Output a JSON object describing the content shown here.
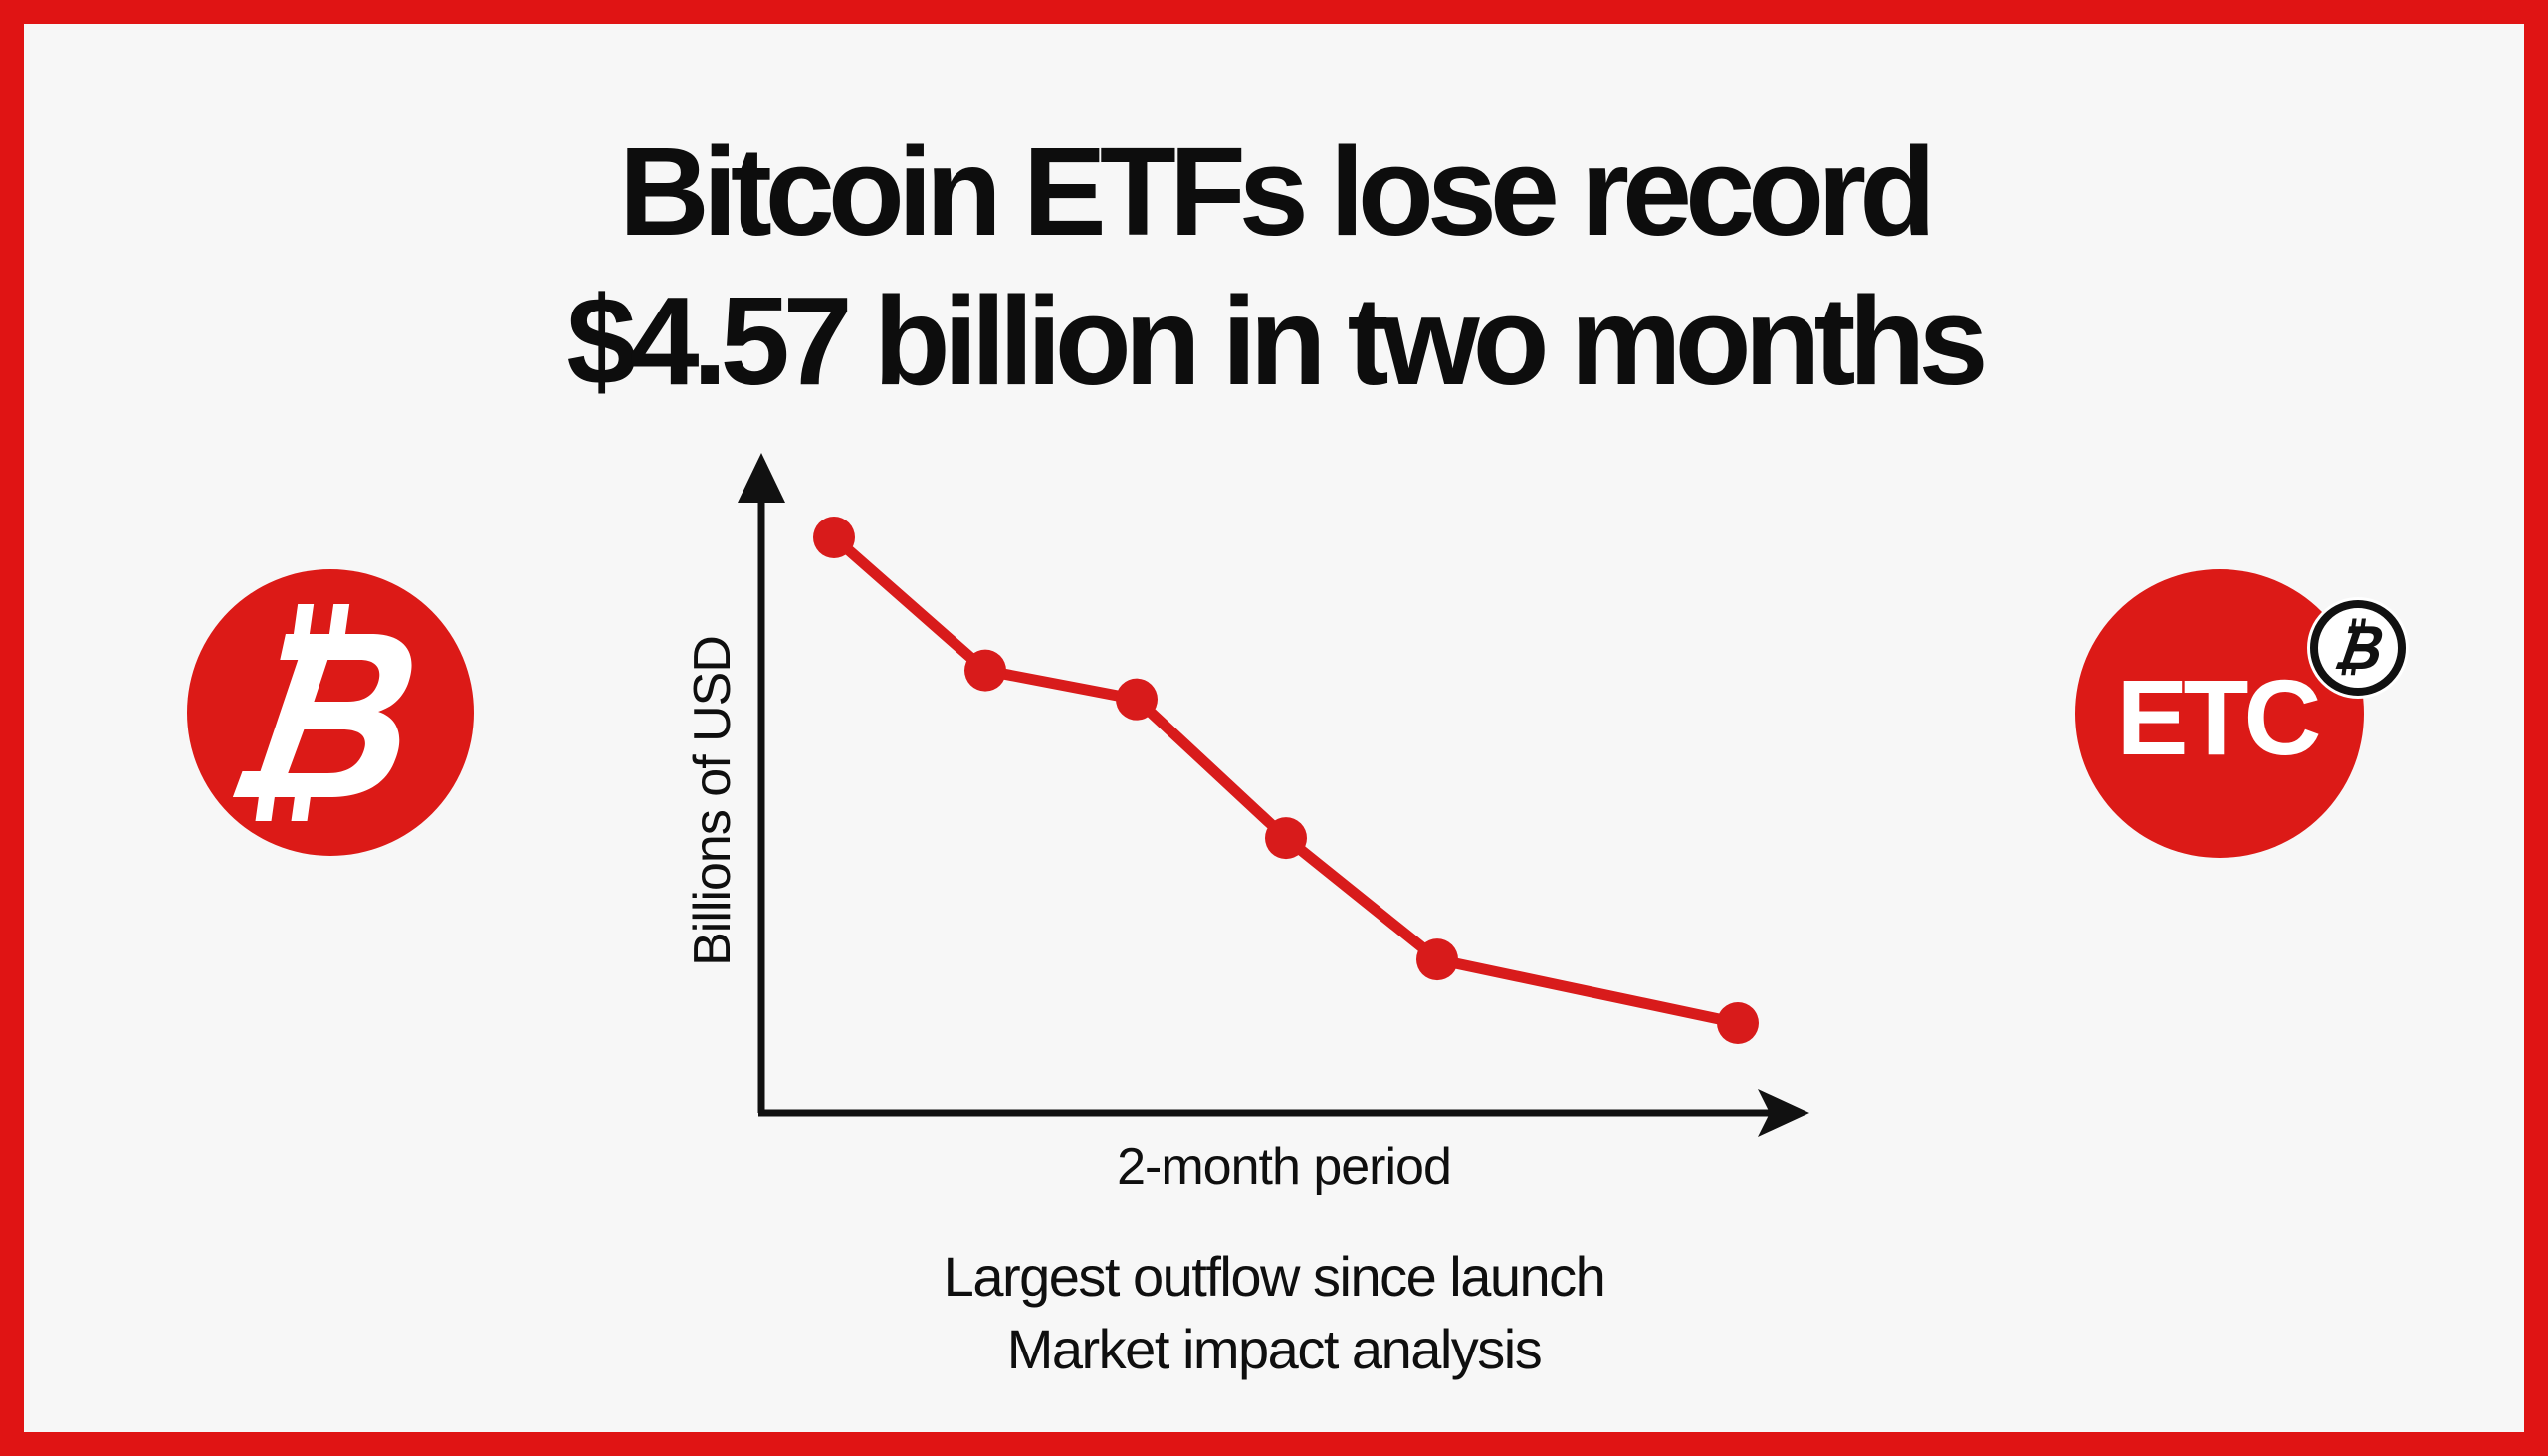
{
  "headline": {
    "line1": "Bitcoin ETFs lose record",
    "line2": "$4.57 billion in two months"
  },
  "logos": {
    "left_icon": "bitcoin-logo",
    "right_text": "ETC",
    "right_badge_icon": "bitcoin-symbol"
  },
  "chart_data": {
    "type": "line",
    "xlabel": "2-month period",
    "ylabel": "Billions of USD",
    "series": [
      {
        "values": [
          100,
          77,
          72,
          48,
          27,
          16
        ]
      }
    ],
    "grid": false,
    "color": "#d81b1b"
  },
  "captions": {
    "line1": "Largest outflow since launch",
    "line2": "Market impact analysis"
  },
  "colors": {
    "accent": "#e01414",
    "text": "#0d0d0d",
    "background": "#f7f7f7"
  }
}
